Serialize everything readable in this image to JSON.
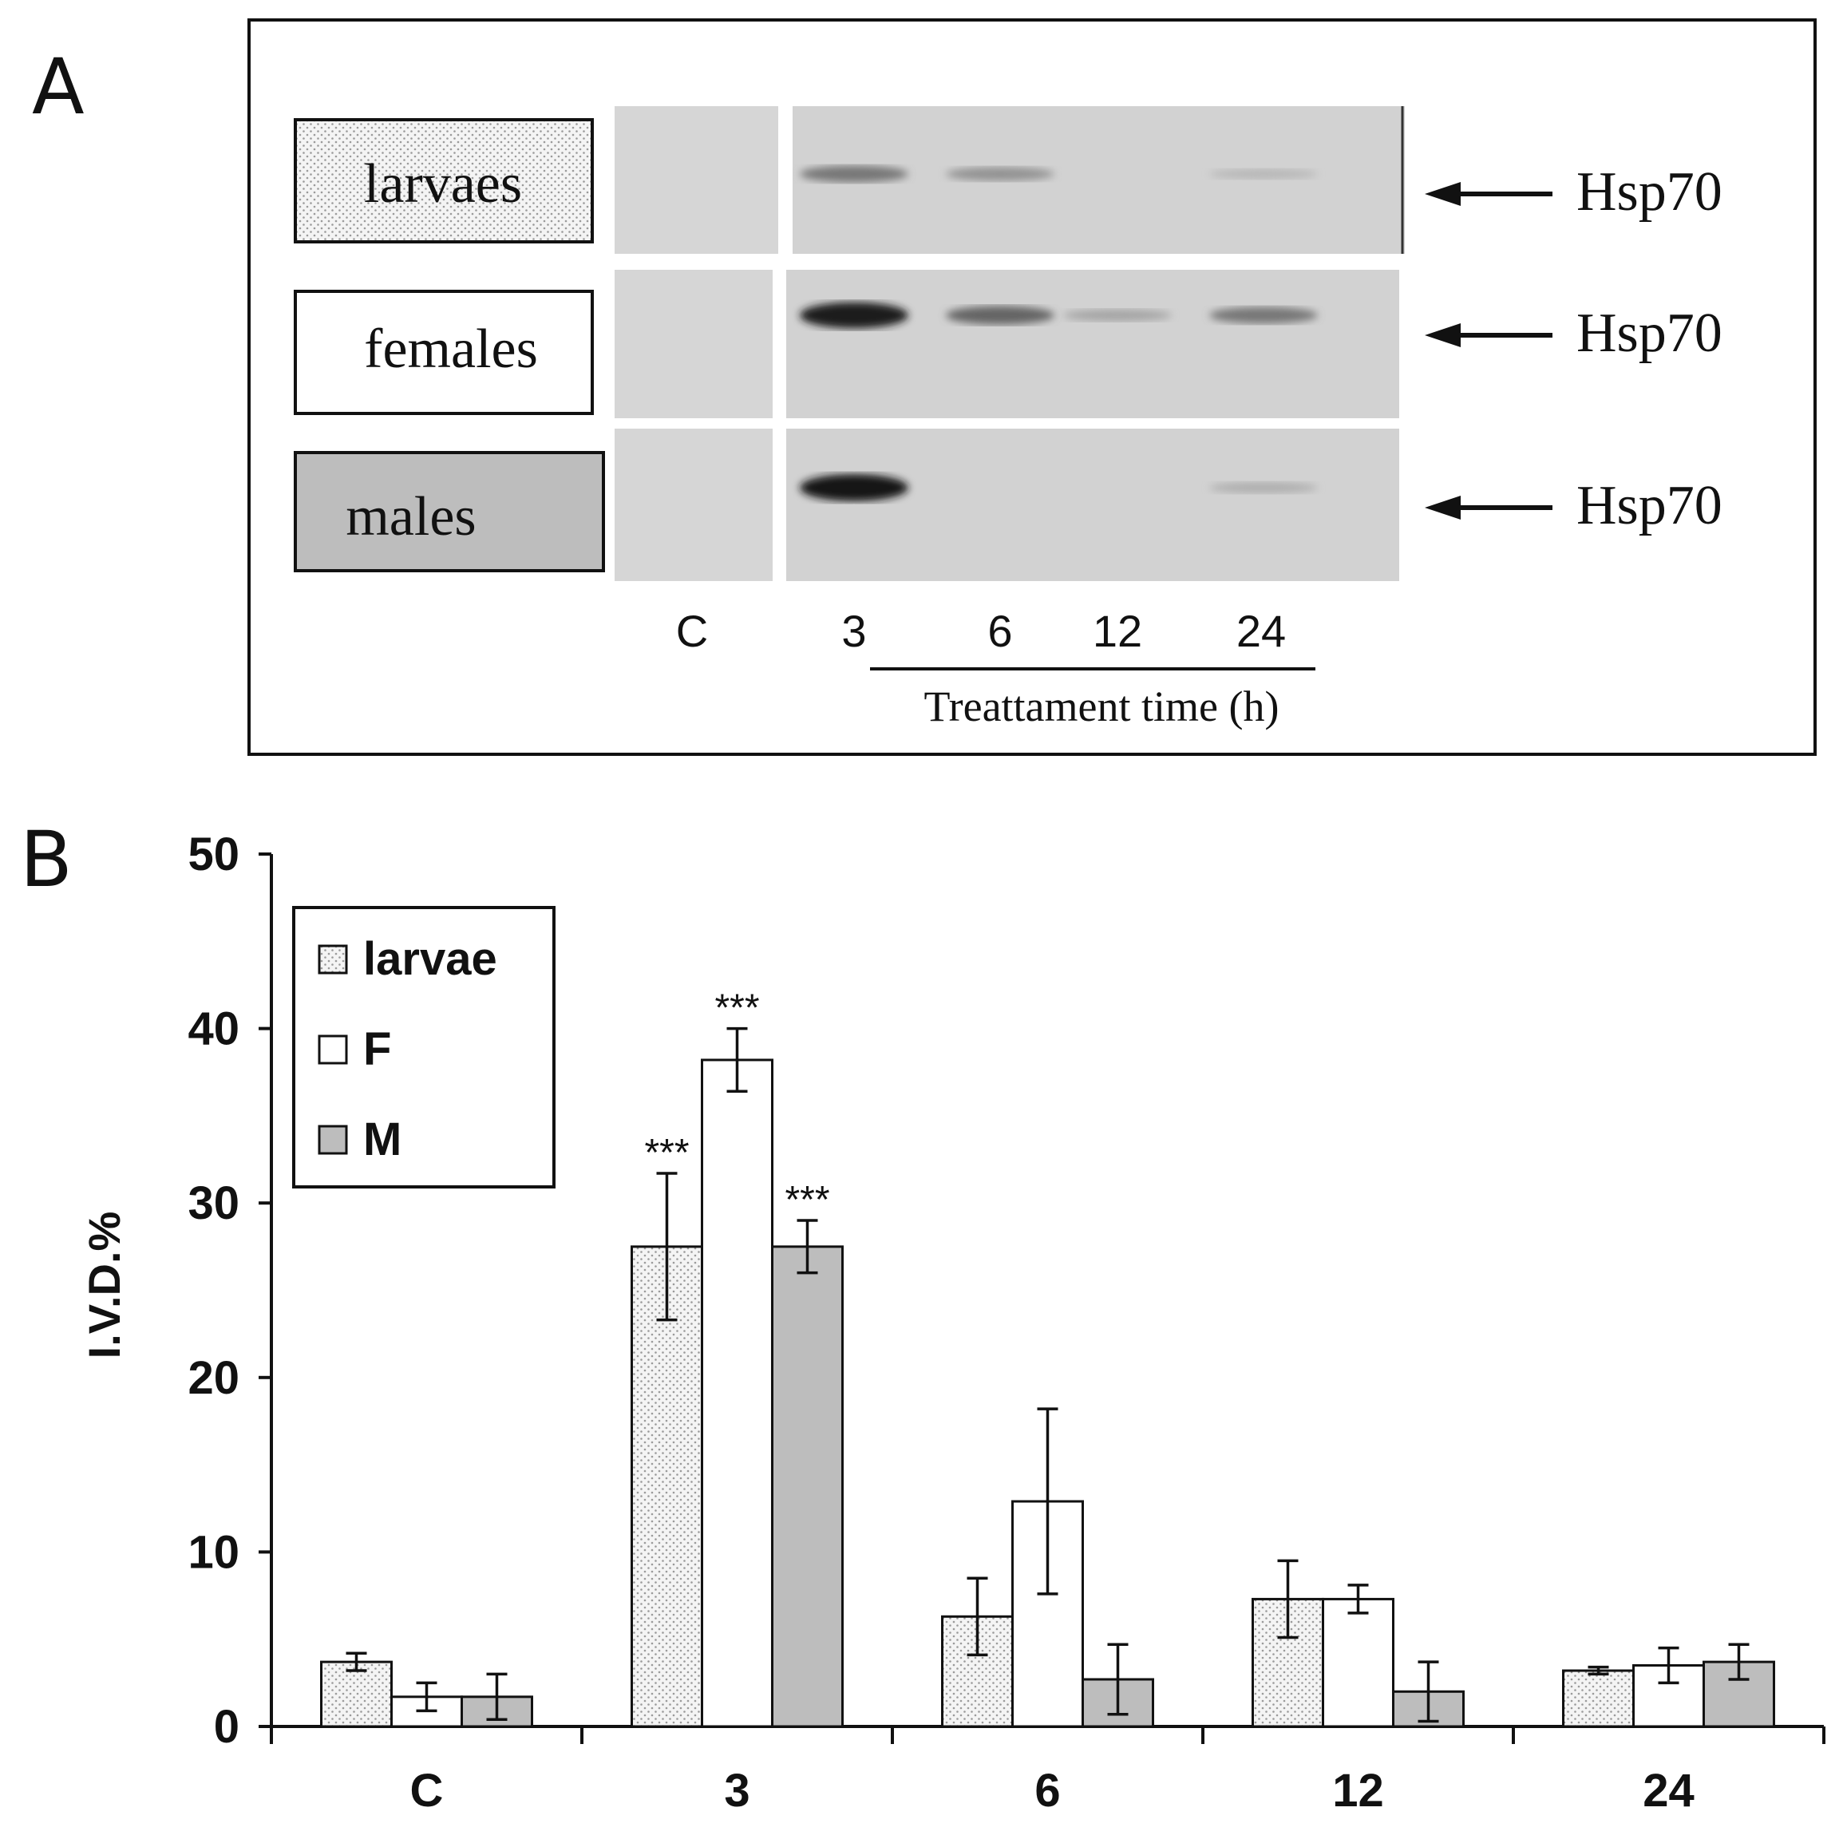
{
  "panel_a": {
    "letter": "A",
    "rows": [
      {
        "label": "larvaes",
        "marker": "Hsp70",
        "fill": "dotted",
        "band_intensity": [
          0,
          0.45,
          0.3,
          0,
          0.1
        ]
      },
      {
        "label": "females",
        "marker": "Hsp70",
        "fill": "white",
        "band_intensity": [
          0,
          0.95,
          0.55,
          0.2,
          0.45
        ]
      },
      {
        "label": "males",
        "marker": "Hsp70",
        "fill": "gray",
        "band_intensity": [
          0,
          1.0,
          0,
          0,
          0.15
        ]
      }
    ],
    "lanes": [
      "C",
      "3",
      "6",
      "12",
      "24"
    ],
    "xlabel": "Treattament time (h)"
  },
  "chart_data": {
    "type": "bar",
    "panel_letter": "B",
    "categories": [
      "C",
      "3",
      "6",
      "12",
      "24"
    ],
    "series": [
      {
        "name": "larvae",
        "fill": "dotted",
        "values": [
          3.7,
          27.5,
          6.3,
          7.3,
          3.2
        ],
        "errors": [
          0.5,
          4.2,
          2.2,
          2.2,
          0.2
        ],
        "sig": [
          "",
          "***",
          "",
          "",
          ""
        ]
      },
      {
        "name": "F",
        "fill": "white",
        "values": [
          1.7,
          38.2,
          12.9,
          7.3,
          3.5
        ],
        "errors": [
          0.8,
          1.8,
          5.3,
          0.8,
          1.0
        ],
        "sig": [
          "",
          "***",
          "",
          "",
          ""
        ]
      },
      {
        "name": "M",
        "fill": "gray",
        "values": [
          1.7,
          27.5,
          2.7,
          2.0,
          3.7
        ],
        "errors": [
          1.3,
          1.5,
          2.0,
          1.7,
          1.0
        ],
        "sig": [
          "",
          "***",
          "",
          "",
          ""
        ]
      }
    ],
    "ylabel": "I.V.D.%",
    "xlabel": "",
    "ylim": [
      0,
      50
    ],
    "yticks": [
      0,
      10,
      20,
      30,
      40,
      50
    ],
    "legend_position": "top-left",
    "grid": false,
    "colors": {
      "gray": "#bdbdbd",
      "white": "#ffffff",
      "dot_bg": "#f2f2f2",
      "dot": "#9a9a9a"
    }
  }
}
